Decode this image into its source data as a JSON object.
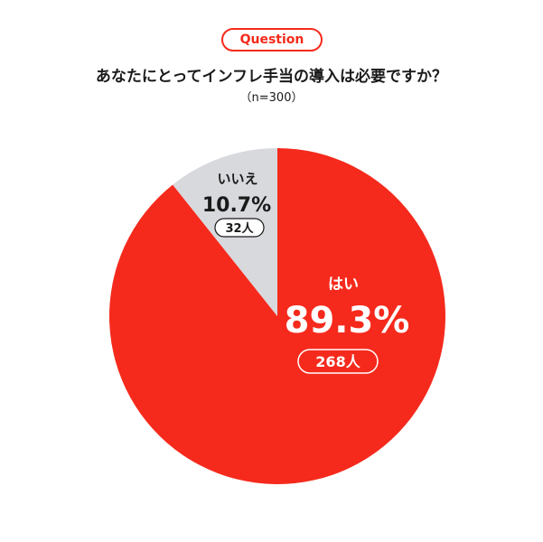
{
  "header": {
    "badge": "Question",
    "title": "あなたにとってインフレ手当の導入は必要ですか？",
    "sample": "（n=300）"
  },
  "colors": {
    "accent": "#f52a1c",
    "secondary": "#d7d9dd",
    "text_dark": "#1a1a1a",
    "text_light": "#ffffff"
  },
  "chart_data": {
    "type": "pie",
    "title": "あなたにとってインフレ手当の導入は必要ですか？",
    "subtitle": "（n=300）",
    "slices": [
      {
        "label": "はい",
        "percent": 89.3,
        "percent_label": "89.3%",
        "count": 268,
        "count_label": "268人",
        "color": "#f52a1c"
      },
      {
        "label": "いいえ",
        "percent": 10.7,
        "percent_label": "10.7%",
        "count": 32,
        "count_label": "32人",
        "color": "#d7d9dd"
      }
    ],
    "start": "top",
    "direction": "clockwise"
  }
}
